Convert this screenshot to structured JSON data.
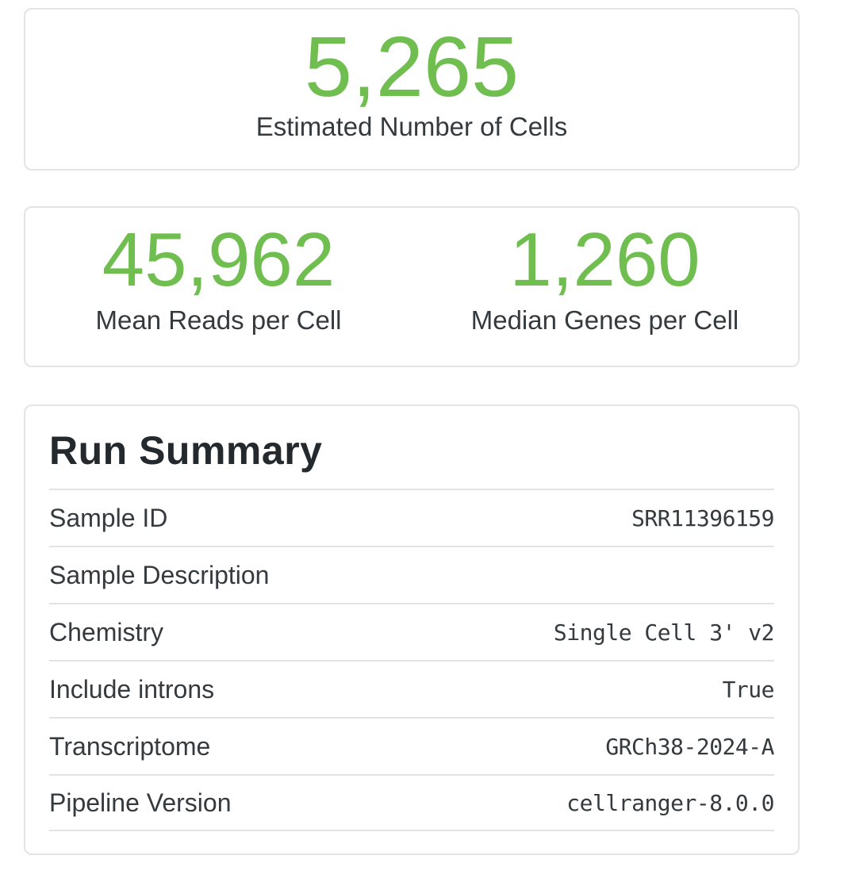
{
  "colors": {
    "accent_green": "#70be50",
    "text_dark": "#24292e",
    "text": "#343a3e",
    "card_border": "#e3e4e6",
    "divider": "#e2e2e4",
    "background": "#ffffff"
  },
  "hero": {
    "value": "5,265",
    "label": "Estimated Number of Cells"
  },
  "pair": [
    {
      "value": "45,962",
      "label": "Mean Reads per Cell"
    },
    {
      "value": "1,260",
      "label": "Median Genes per Cell"
    }
  ],
  "run_summary": {
    "title": "Run Summary",
    "rows": [
      {
        "label": "Sample ID",
        "value": "SRR11396159"
      },
      {
        "label": "Sample Description",
        "value": ""
      },
      {
        "label": "Chemistry",
        "value": "Single Cell 3' v2"
      },
      {
        "label": "Include introns",
        "value": "True"
      },
      {
        "label": "Transcriptome",
        "value": "GRCh38-2024-A"
      },
      {
        "label": "Pipeline Version",
        "value": "cellranger-8.0.0"
      }
    ]
  }
}
